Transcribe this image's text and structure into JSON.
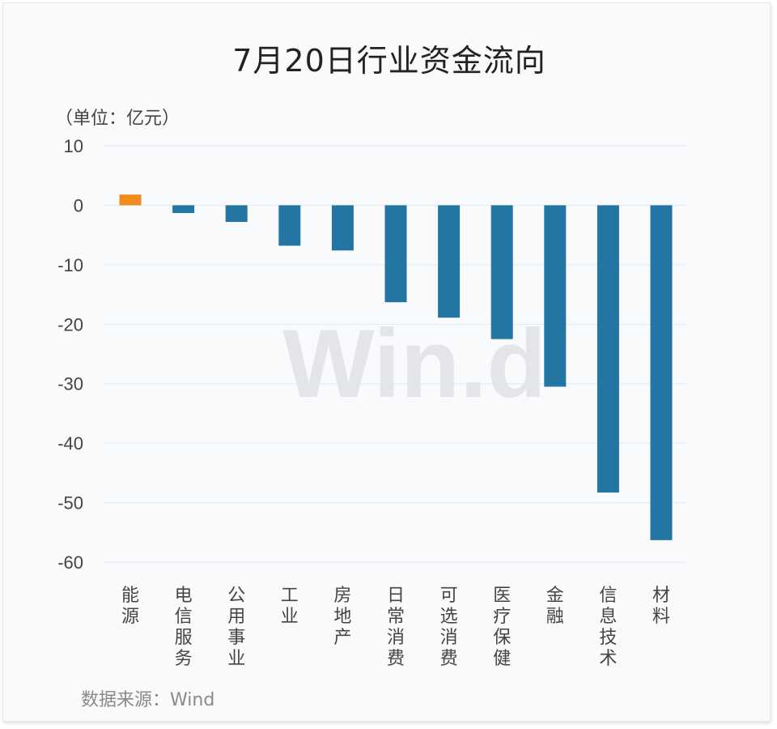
{
  "chart_data": {
    "type": "bar",
    "title": "7月20日行业资金流向",
    "unit_label": "（单位：亿元）",
    "source": "数据来源：Wind",
    "watermark": "Win.d",
    "categories": [
      "能源",
      "电信服务",
      "公用事业",
      "工业",
      "房地产",
      "日常消费",
      "可选消费",
      "医疗保健",
      "金融",
      "信息技术",
      "材料"
    ],
    "values": [
      1.8,
      -1.3,
      -2.8,
      -6.8,
      -7.6,
      -16.3,
      -18.9,
      -22.5,
      -30.5,
      -48.3,
      -56.3
    ],
    "ylim": [
      -60,
      10
    ],
    "yticks": [
      10,
      0,
      -10,
      -20,
      -30,
      -40,
      -50,
      -60
    ],
    "ytick_labels": [
      "10",
      "0",
      "-10",
      "-20",
      "-30",
      "-40",
      "-50",
      "-60"
    ],
    "grid": true,
    "colors": {
      "positive": "#f28a1e",
      "negative": "#2376a3",
      "grid": "#e3e7ec"
    }
  }
}
